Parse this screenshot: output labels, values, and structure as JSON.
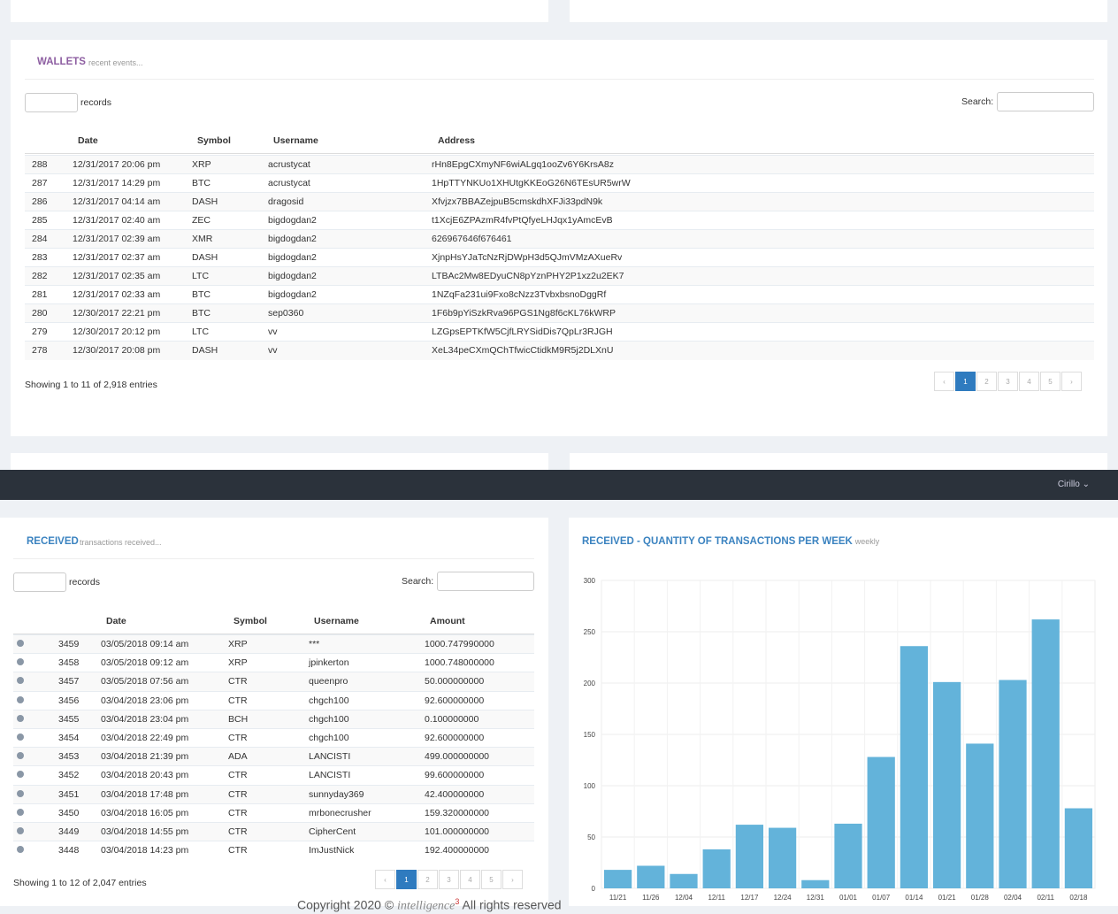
{
  "wallets": {
    "title": "WALLETS",
    "subtitle": "recent events...",
    "length_label": "records",
    "search_label": "Search:",
    "columns": [
      "Date",
      "Symbol",
      "Username",
      "Address"
    ],
    "rows": [
      [
        288,
        "12/31/2017 20:06 pm",
        "XRP",
        "acrustycat",
        "rHn8EpgCXmyNF6wiALgq1ooZv6Y6KrsA8z"
      ],
      [
        287,
        "12/31/2017 14:29 pm",
        "BTC",
        "acrustycat",
        "1HpTTYNKUo1XHUtgKKEoG26N6TEsUR5wrW"
      ],
      [
        286,
        "12/31/2017 04:14 am",
        "DASH",
        "dragosid",
        "Xfvjzx7BBAZejpuB5cmskdhXFJi33pdN9k"
      ],
      [
        285,
        "12/31/2017 02:40 am",
        "ZEC",
        "bigdogdan2",
        "t1XcjE6ZPAzmR4fvPtQfyeLHJqx1yAmcEvB"
      ],
      [
        284,
        "12/31/2017 02:39 am",
        "XMR",
        "bigdogdan2",
        "626967646f676461"
      ],
      [
        283,
        "12/31/2017 02:37 am",
        "DASH",
        "bigdogdan2",
        "XjnpHsYJaTcNzRjDWpH3d5QJmVMzAXueRv"
      ],
      [
        282,
        "12/31/2017 02:35 am",
        "LTC",
        "bigdogdan2",
        "LTBAc2Mw8EDyuCN8pYznPHY2P1xz2u2EK7"
      ],
      [
        281,
        "12/31/2017 02:33 am",
        "BTC",
        "bigdogdan2",
        "1NZqFa231ui9Fxo8cNzz3TvbxbsnoDggRf"
      ],
      [
        280,
        "12/30/2017 22:21 pm",
        "BTC",
        "sep0360",
        "1F6b9pYiSzkRva96PGS1Ng8f6cKL76kWRP"
      ],
      [
        279,
        "12/30/2017 20:12 pm",
        "LTC",
        "vv",
        "LZGpsEPTKfW5CjfLRYSidDis7QpLr3RJGH"
      ],
      [
        278,
        "12/30/2017 20:08 pm",
        "DASH",
        "vv",
        "XeL34peCXmQChTfwicCtidkM9R5j2DLXnU"
      ]
    ],
    "info": "Showing 1 to 11 of 2,918 entries",
    "pages": [
      "‹",
      "1",
      "2",
      "3",
      "4",
      "5",
      "›"
    ]
  },
  "topbar": {
    "user": "Cirillo ⌄"
  },
  "received": {
    "title": "RECEIVED",
    "subtitle": "transactions received...",
    "length_label": "records",
    "search_label": "Search:",
    "columns": [
      "Date",
      "Symbol",
      "Username",
      "Amount"
    ],
    "rows": [
      [
        3459,
        "03/05/2018 09:14 am",
        "XRP",
        "***",
        "1000.747990000"
      ],
      [
        3458,
        "03/05/2018 09:12 am",
        "XRP",
        "jpinkerton",
        "1000.748000000"
      ],
      [
        3457,
        "03/05/2018 07:56 am",
        "CTR",
        "queenpro",
        "50.000000000"
      ],
      [
        3456,
        "03/04/2018 23:06 pm",
        "CTR",
        "chgch100",
        "92.600000000"
      ],
      [
        3455,
        "03/04/2018 23:04 pm",
        "BCH",
        "chgch100",
        "0.100000000"
      ],
      [
        3454,
        "03/04/2018 22:49 pm",
        "CTR",
        "chgch100",
        "92.600000000"
      ],
      [
        3453,
        "03/04/2018 21:39 pm",
        "ADA",
        "LANCISTI",
        "499.000000000"
      ],
      [
        3452,
        "03/04/2018 20:43 pm",
        "CTR",
        "LANCISTI",
        "99.600000000"
      ],
      [
        3451,
        "03/04/2018 17:48 pm",
        "CTR",
        "sunnyday369",
        "42.400000000"
      ],
      [
        3450,
        "03/04/2018 16:05 pm",
        "CTR",
        "mrbonecrusher",
        "159.320000000"
      ],
      [
        3449,
        "03/04/2018 14:55 pm",
        "CTR",
        "CipherCent",
        "101.000000000"
      ],
      [
        3448,
        "03/04/2018 14:23 pm",
        "CTR",
        "ImJustNick",
        "192.400000000"
      ]
    ],
    "info": "Showing 1 to 12 of 2,047 entries",
    "pages": [
      "‹",
      "1",
      "2",
      "3",
      "4",
      "5",
      "›"
    ]
  },
  "chart_data": {
    "type": "bar",
    "title": "RECEIVED - QUANTITY OF TRANSACTIONS PER WEEK",
    "subtitle": "weekly",
    "categories": [
      "11/21",
      "11/26",
      "12/04",
      "12/11",
      "12/17",
      "12/24",
      "12/31",
      "01/01",
      "01/07",
      "01/14",
      "01/21",
      "01/28",
      "02/04",
      "02/11",
      "02/18"
    ],
    "values": [
      18,
      22,
      14,
      38,
      62,
      59,
      8,
      63,
      128,
      236,
      201,
      141,
      203,
      262,
      78
    ],
    "color": "#63b3da",
    "ylim": [
      0,
      300
    ],
    "yticks": [
      0,
      50,
      100,
      150,
      200,
      250,
      300
    ],
    "grid": true
  },
  "footer": {
    "text": "Copyright 2020 ©",
    "brand": "intelligence",
    "sup": "3",
    "rights": "All rights reserved"
  }
}
